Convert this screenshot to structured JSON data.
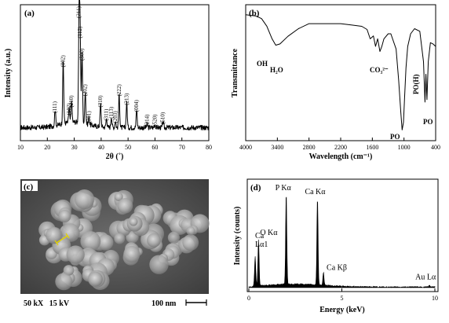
{
  "chart_data": [
    {
      "type": "line",
      "panel_label": "(a)",
      "xlabel": "2θ (˚)",
      "ylabel": "Intensity (a.u.)",
      "xlim": [
        10,
        80
      ],
      "x_ticks": [
        "10",
        "20",
        "30",
        "40",
        "50",
        "60",
        "70",
        "80"
      ],
      "grid": false,
      "peaks": [
        {
          "label": "(111)",
          "x": 22.9,
          "y": 0.15
        },
        {
          "label": "(002)",
          "x": 25.9,
          "y": 0.56
        },
        {
          "label": "(102)",
          "x": 28.1,
          "y": 0.13
        },
        {
          "label": "(210)",
          "x": 29.0,
          "y": 0.2
        },
        {
          "label": "(211)",
          "x": 31.8,
          "y": 1.0
        },
        {
          "label": "(112)",
          "x": 32.2,
          "y": 0.82
        },
        {
          "label": "(300)",
          "x": 32.9,
          "y": 0.62
        },
        {
          "label": "(202)",
          "x": 34.1,
          "y": 0.3
        },
        {
          "label": "(301)",
          "x": 35.5,
          "y": 0.06
        },
        {
          "label": "(310)",
          "x": 39.8,
          "y": 0.2
        },
        {
          "label": "(311)",
          "x": 42.0,
          "y": 0.08
        },
        {
          "label": "(113)",
          "x": 43.8,
          "y": 0.1
        },
        {
          "label": "(203)",
          "x": 45.3,
          "y": 0.06
        },
        {
          "label": "(222)",
          "x": 46.7,
          "y": 0.3
        },
        {
          "label": "(213)",
          "x": 49.5,
          "y": 0.22
        },
        {
          "label": "(004)",
          "x": 53.2,
          "y": 0.16
        },
        {
          "label": "(214)",
          "x": 57.1,
          "y": 0.03
        },
        {
          "label": "(520)",
          "x": 60.0,
          "y": 0.03
        },
        {
          "label": "(510)",
          "x": 63.0,
          "y": 0.05
        }
      ]
    },
    {
      "type": "line",
      "panel_label": "(b)",
      "xlabel": "Wavelength (cm⁻¹)",
      "ylabel": "Transmittance",
      "xlim": [
        4000,
        400
      ],
      "x_ticks": [
        "4000",
        "3400",
        "2800",
        "2200",
        "1600",
        "1000",
        "400"
      ],
      "grid": false,
      "annotations": {
        "oh": "OH",
        "h2o": "H₂O",
        "co3": "CO₃²⁻",
        "po_a": "PO",
        "poh": "PO(H)",
        "po_b": "PO"
      },
      "points": [
        {
          "x": 4000,
          "y": 0.97
        },
        {
          "x": 3800,
          "y": 0.96
        },
        {
          "x": 3700,
          "y": 0.94
        },
        {
          "x": 3600,
          "y": 0.88
        },
        {
          "x": 3500,
          "y": 0.78
        },
        {
          "x": 3430,
          "y": 0.73
        },
        {
          "x": 3350,
          "y": 0.74
        },
        {
          "x": 3200,
          "y": 0.8
        },
        {
          "x": 3000,
          "y": 0.86
        },
        {
          "x": 2800,
          "y": 0.9
        },
        {
          "x": 2600,
          "y": 0.9
        },
        {
          "x": 2400,
          "y": 0.9
        },
        {
          "x": 2200,
          "y": 0.9
        },
        {
          "x": 2000,
          "y": 0.89
        },
        {
          "x": 1800,
          "y": 0.88
        },
        {
          "x": 1700,
          "y": 0.85
        },
        {
          "x": 1640,
          "y": 0.78
        },
        {
          "x": 1580,
          "y": 0.8
        },
        {
          "x": 1540,
          "y": 0.72
        },
        {
          "x": 1500,
          "y": 0.78
        },
        {
          "x": 1456,
          "y": 0.68
        },
        {
          "x": 1420,
          "y": 0.72
        },
        {
          "x": 1380,
          "y": 0.78
        },
        {
          "x": 1300,
          "y": 0.82
        },
        {
          "x": 1250,
          "y": 0.82
        },
        {
          "x": 1150,
          "y": 0.7
        },
        {
          "x": 1100,
          "y": 0.45
        },
        {
          "x": 1060,
          "y": 0.2
        },
        {
          "x": 1035,
          "y": 0.06
        },
        {
          "x": 1010,
          "y": 0.12
        },
        {
          "x": 990,
          "y": 0.3
        },
        {
          "x": 962,
          "y": 0.55
        },
        {
          "x": 930,
          "y": 0.72
        },
        {
          "x": 875,
          "y": 0.82
        },
        {
          "x": 800,
          "y": 0.86
        },
        {
          "x": 700,
          "y": 0.84
        },
        {
          "x": 630,
          "y": 0.6
        },
        {
          "x": 603,
          "y": 0.28
        },
        {
          "x": 585,
          "y": 0.5
        },
        {
          "x": 565,
          "y": 0.3
        },
        {
          "x": 540,
          "y": 0.6
        },
        {
          "x": 500,
          "y": 0.75
        },
        {
          "x": 450,
          "y": 0.74
        },
        {
          "x": 400,
          "y": 0.72
        }
      ]
    },
    {
      "type": "image",
      "panel_label": "(c)",
      "caption_left": "50 kX   15 kV",
      "scale_label": "100 nm"
    },
    {
      "type": "bar",
      "panel_label": "(d)",
      "xlabel": "Energy (keV)",
      "ylabel": "Intensity (counts)",
      "xlim": [
        0,
        10
      ],
      "x_ticks": [
        "0",
        "5",
        "10"
      ],
      "peaks": [
        {
          "label": "Ca Lα1",
          "x": 0.34,
          "y": 0.3
        },
        {
          "label": "O Kα",
          "x": 0.52,
          "y": 0.47
        },
        {
          "label": "P Kα",
          "x": 2.01,
          "y": 0.92
        },
        {
          "label": "Ca Kα",
          "x": 3.69,
          "y": 0.88
        },
        {
          "label": "Ca Kβ",
          "x": 4.01,
          "y": 0.13
        },
        {
          "label": "Au Lα",
          "x": 9.71,
          "y": 0.02
        }
      ]
    }
  ]
}
